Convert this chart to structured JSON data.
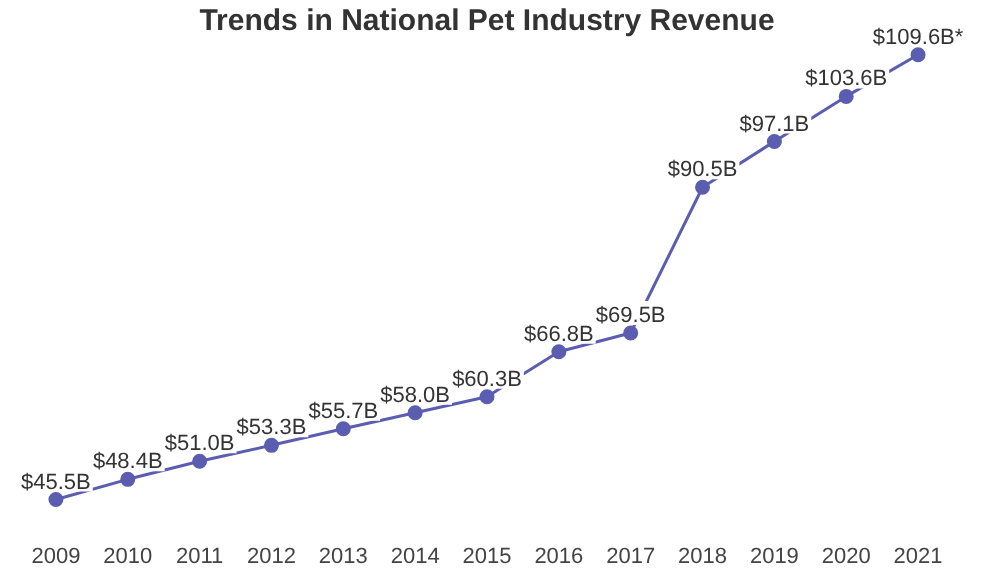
{
  "chart_data": {
    "type": "line",
    "title": "Trends in National Pet Industry Revenue",
    "categories": [
      "2009",
      "2010",
      "2011",
      "2012",
      "2013",
      "2014",
      "2015",
      "2016",
      "2017",
      "2018",
      "2019",
      "2020",
      "2021"
    ],
    "series": [
      {
        "color": "#5a5db0",
        "values": [
          45.5,
          48.4,
          51.0,
          53.3,
          55.7,
          58.0,
          60.3,
          66.8,
          69.5,
          90.5,
          97.1,
          103.6,
          109.6
        ],
        "value_labels": [
          "$45.5B",
          "$48.4B",
          "$51.0B",
          "$53.3B",
          "$55.7B",
          "$58.0B",
          "$60.3B",
          "$66.8B",
          "$69.5B",
          "$90.5B",
          "$97.1B",
          "$103.6B",
          "$109.6B*"
        ]
      }
    ],
    "grid": false,
    "legend": false,
    "marker": "circle",
    "line_style": "solid",
    "tick_labels": "x"
  }
}
